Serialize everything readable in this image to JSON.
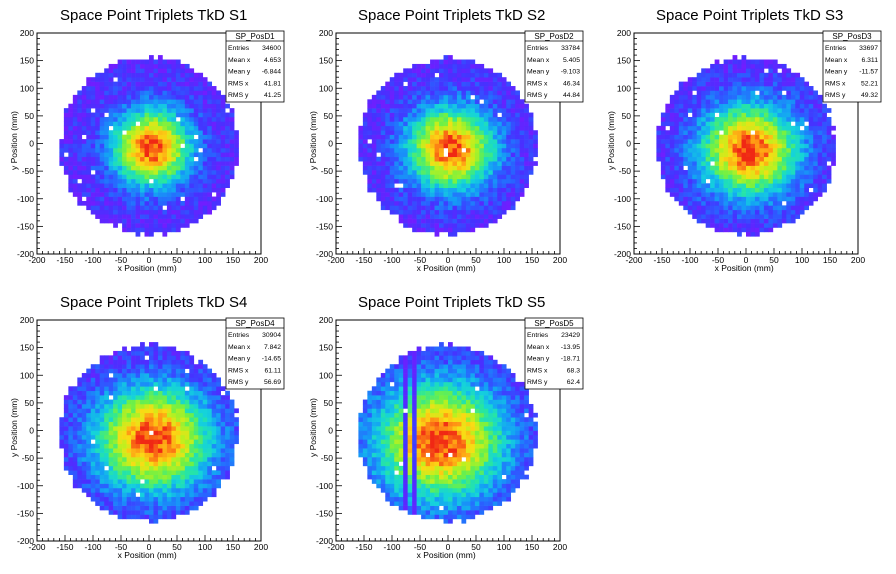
{
  "chart_data": [
    {
      "type": "heatmap",
      "title": "Space Point Triplets TkD S1",
      "xlabel": "x Position (mm)",
      "ylabel": "y Position (mm)",
      "xlim": [
        -200,
        200
      ],
      "ylim": [
        -200,
        200
      ],
      "xticks": [
        "-200",
        "-150",
        "-100",
        "-50",
        "0",
        "50",
        "100",
        "150",
        "200"
      ],
      "yticks": [
        "-200",
        "-150",
        "-100",
        "-50",
        "0",
        "50",
        "100",
        "150",
        "200"
      ],
      "grid": false,
      "stats": {
        "name": "SP_PosD1",
        "rows": [
          [
            "Entries",
            "34600"
          ],
          [
            "Mean x",
            "4.653"
          ],
          [
            "Mean y",
            "-6.844"
          ],
          [
            "RMS x",
            "41.81"
          ],
          [
            "RMS y",
            "41.25"
          ]
        ]
      },
      "mean": [
        4.653,
        -6.844
      ],
      "rms": [
        41.81,
        41.25
      ]
    },
    {
      "type": "heatmap",
      "title": "Space Point Triplets TkD S2",
      "xlabel": "x Position (mm)",
      "ylabel": "y Position (mm)",
      "xlim": [
        -200,
        200
      ],
      "ylim": [
        -200,
        200
      ],
      "xticks": [
        "-200",
        "-150",
        "-100",
        "-50",
        "0",
        "50",
        "100",
        "150",
        "200"
      ],
      "yticks": [
        "-200",
        "-150",
        "-100",
        "-50",
        "0",
        "50",
        "100",
        "150",
        "200"
      ],
      "grid": false,
      "stats": {
        "name": "SP_PosD2",
        "rows": [
          [
            "Entries",
            "33784"
          ],
          [
            "Mean x",
            "5.405"
          ],
          [
            "Mean y",
            "-9.103"
          ],
          [
            "RMS x",
            "46.34"
          ],
          [
            "RMS y",
            "44.84"
          ]
        ]
      },
      "mean": [
        5.405,
        -9.103
      ],
      "rms": [
        46.34,
        44.84
      ]
    },
    {
      "type": "heatmap",
      "title": "Space Point Triplets TkD S3",
      "xlabel": "x Position (mm)",
      "ylabel": "y Position (mm)",
      "xlim": [
        -200,
        200
      ],
      "ylim": [
        -200,
        200
      ],
      "xticks": [
        "-200",
        "-150",
        "-100",
        "-50",
        "0",
        "50",
        "100",
        "150",
        "200"
      ],
      "yticks": [
        "-200",
        "-150",
        "-100",
        "-50",
        "0",
        "50",
        "100",
        "150",
        "200"
      ],
      "grid": false,
      "stats": {
        "name": "SP_PosD3",
        "rows": [
          [
            "Entries",
            "33697"
          ],
          [
            "Mean x",
            "6.311"
          ],
          [
            "Mean y",
            "-11.57"
          ],
          [
            "RMS x",
            "52.21"
          ],
          [
            "RMS y",
            "49.32"
          ]
        ]
      },
      "mean": [
        6.311,
        -11.57
      ],
      "rms": [
        52.21,
        49.32
      ]
    },
    {
      "type": "heatmap",
      "title": "Space Point Triplets TkD S4",
      "xlabel": "x Position (mm)",
      "ylabel": "y Position (mm)",
      "xlim": [
        -200,
        200
      ],
      "ylim": [
        -200,
        200
      ],
      "xticks": [
        "-200",
        "-150",
        "-100",
        "-50",
        "0",
        "50",
        "100",
        "150",
        "200"
      ],
      "yticks": [
        "-200",
        "-150",
        "-100",
        "-50",
        "0",
        "50",
        "100",
        "150",
        "200"
      ],
      "grid": false,
      "stats": {
        "name": "SP_PosD4",
        "rows": [
          [
            "Entries",
            "30904"
          ],
          [
            "Mean x",
            "7.842"
          ],
          [
            "Mean y",
            "-14.65"
          ],
          [
            "RMS x",
            "61.11"
          ],
          [
            "RMS y",
            "56.69"
          ]
        ]
      },
      "mean": [
        7.842,
        -14.65
      ],
      "rms": [
        61.11,
        56.69
      ]
    },
    {
      "type": "heatmap",
      "title": "Space Point Triplets TkD S5",
      "xlabel": "x Position (mm)",
      "ylabel": "y Position (mm)",
      "xlim": [
        -200,
        200
      ],
      "ylim": [
        -200,
        200
      ],
      "xticks": [
        "-200",
        "-150",
        "-100",
        "-50",
        "0",
        "50",
        "100",
        "150",
        "200"
      ],
      "yticks": [
        "-200",
        "-150",
        "-100",
        "-50",
        "0",
        "50",
        "100",
        "150",
        "200"
      ],
      "grid": false,
      "stats": {
        "name": "SP_PosD5",
        "rows": [
          [
            "Entries",
            "23429"
          ],
          [
            "Mean x",
            "-13.95"
          ],
          [
            "Mean y",
            "-18.71"
          ],
          [
            "RMS x",
            "68.3"
          ],
          [
            "RMS y",
            "62.4"
          ]
        ]
      },
      "mean": [
        -13.95,
        -18.71
      ],
      "rms": [
        68.3,
        62.4
      ]
    }
  ]
}
